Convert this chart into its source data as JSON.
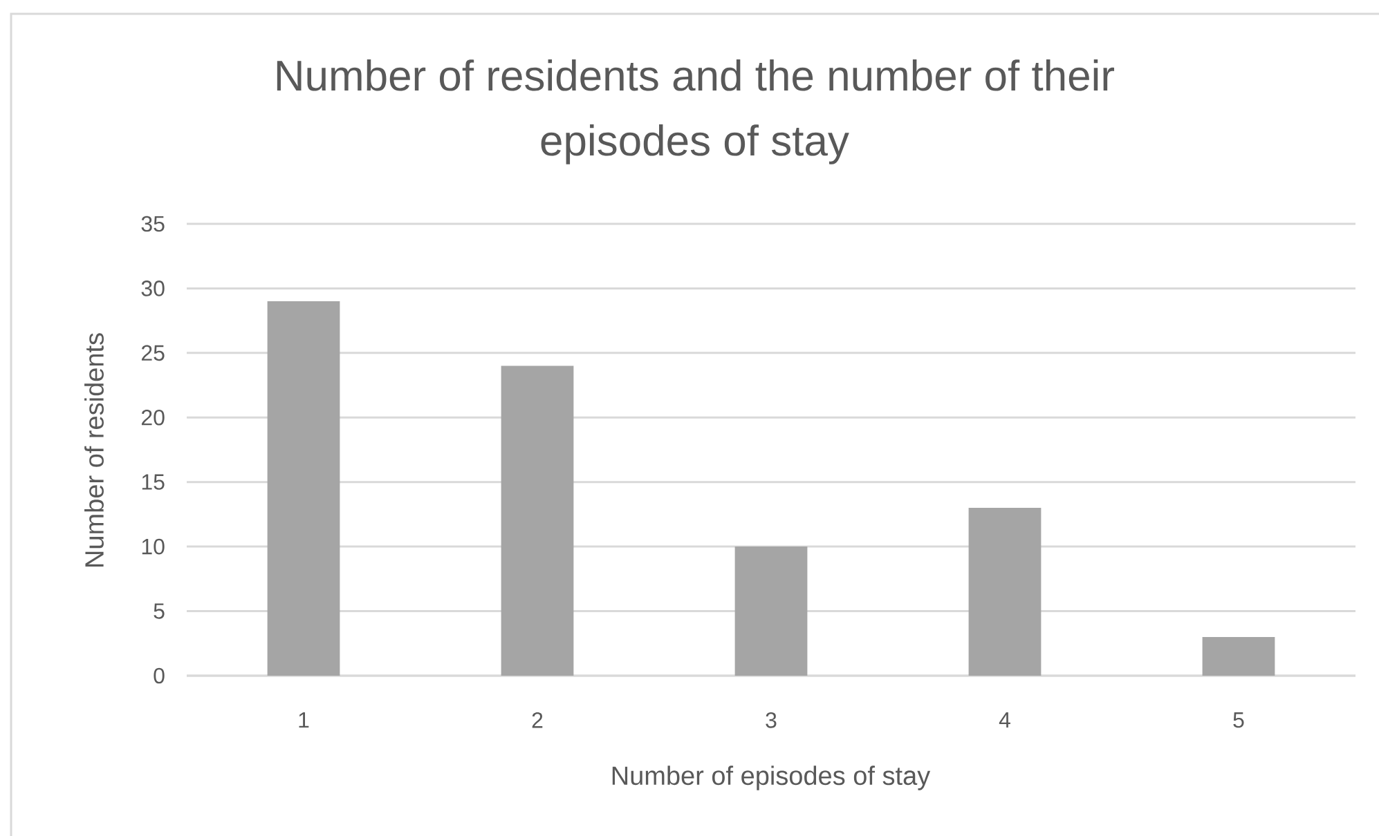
{
  "chart_data": {
    "type": "bar",
    "title": "Number of residents and the number of their episodes of stay",
    "xlabel": "Number of episodes of stay",
    "ylabel": "Number of residents",
    "categories": [
      "1",
      "2",
      "3",
      "4",
      "5"
    ],
    "values": [
      29,
      24,
      10,
      13,
      3
    ],
    "color": "#a5a5a5",
    "ylim": [
      0,
      35
    ],
    "yticks": [
      0,
      5,
      10,
      15,
      20,
      25,
      30,
      35
    ],
    "grid": "y"
  }
}
